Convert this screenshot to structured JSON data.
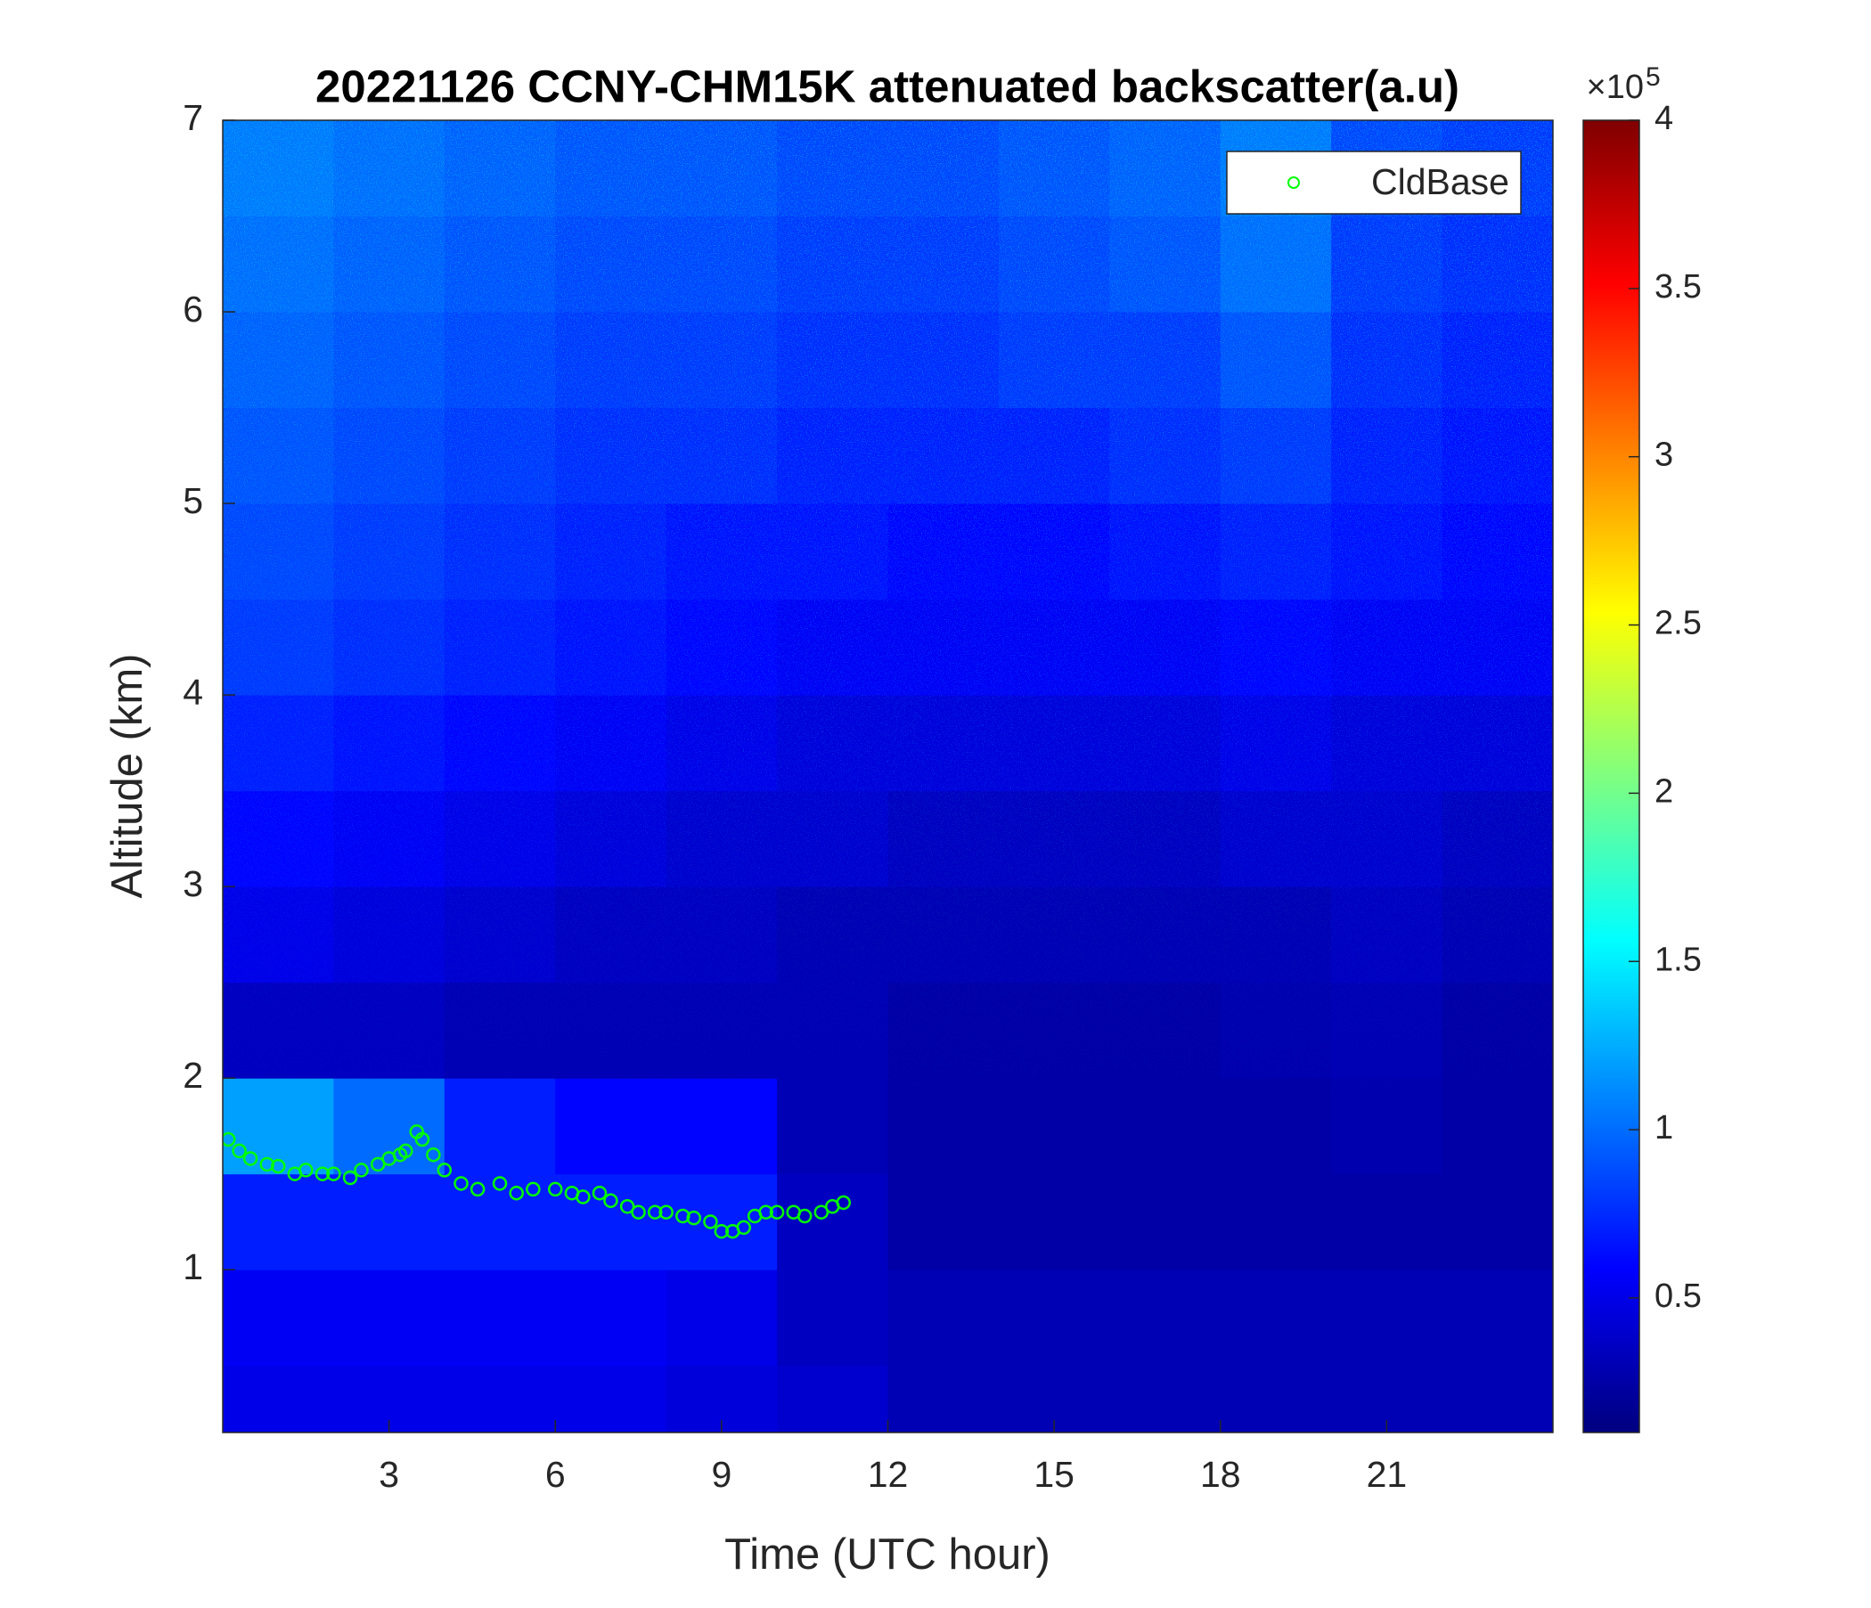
{
  "chart_data": {
    "type": "heatmap",
    "title": "20221126 CCNY-CHM15K attenuated backscatter(a.u)",
    "x_label": "Time (UTC hour)",
    "y_label": "Altitude (km)",
    "xlim": [
      0,
      24
    ],
    "xticks": [
      3,
      6,
      9,
      12,
      15,
      18,
      21
    ],
    "ylim": [
      0.15,
      7
    ],
    "yticks": [
      1,
      2,
      3,
      4,
      5,
      6,
      7
    ],
    "x_edges": [
      0,
      2,
      4,
      6,
      8,
      10,
      12,
      14,
      16,
      18,
      20,
      22,
      24
    ],
    "y_edges": [
      0.15,
      0.5,
      1,
      1.5,
      2,
      2.5,
      3,
      3.5,
      4,
      4.5,
      5,
      5.5,
      6,
      6.5,
      7
    ],
    "z": [
      [
        0.5,
        0.5,
        0.5,
        0.5,
        0.45,
        0.4,
        0.3,
        0.3,
        0.3,
        0.3,
        0.3,
        0.3
      ],
      [
        0.55,
        0.55,
        0.55,
        0.55,
        0.5,
        0.35,
        0.3,
        0.3,
        0.3,
        0.3,
        0.3,
        0.3
      ],
      [
        0.7,
        0.7,
        0.7,
        0.7,
        0.7,
        0.35,
        0.25,
        0.25,
        0.25,
        0.25,
        0.25,
        0.25
      ],
      [
        1.2,
        1.0,
        0.7,
        0.6,
        0.6,
        0.3,
        0.25,
        0.25,
        0.25,
        0.25,
        0.28,
        0.25
      ],
      [
        0.35,
        0.35,
        0.3,
        0.3,
        0.3,
        0.3,
        0.25,
        0.25,
        0.25,
        0.28,
        0.3,
        0.25
      ],
      [
        0.5,
        0.45,
        0.4,
        0.35,
        0.35,
        0.3,
        0.3,
        0.3,
        0.3,
        0.3,
        0.35,
        0.3
      ],
      [
        0.6,
        0.55,
        0.5,
        0.45,
        0.4,
        0.4,
        0.35,
        0.35,
        0.35,
        0.4,
        0.4,
        0.35
      ],
      [
        0.7,
        0.65,
        0.6,
        0.55,
        0.5,
        0.45,
        0.45,
        0.45,
        0.45,
        0.5,
        0.45,
        0.45
      ],
      [
        0.8,
        0.75,
        0.7,
        0.65,
        0.6,
        0.55,
        0.55,
        0.55,
        0.55,
        0.6,
        0.55,
        0.55
      ],
      [
        0.85,
        0.8,
        0.75,
        0.7,
        0.65,
        0.65,
        0.6,
        0.6,
        0.65,
        0.7,
        0.65,
        0.6
      ],
      [
        0.9,
        0.85,
        0.8,
        0.75,
        0.75,
        0.7,
        0.7,
        0.7,
        0.75,
        0.8,
        0.7,
        0.65
      ],
      [
        0.95,
        0.9,
        0.85,
        0.8,
        0.8,
        0.75,
        0.75,
        0.8,
        0.8,
        0.9,
        0.75,
        0.7
      ],
      [
        1.0,
        0.95,
        0.9,
        0.85,
        0.85,
        0.8,
        0.8,
        0.85,
        0.9,
        1.0,
        0.8,
        0.75
      ],
      [
        1.05,
        1.0,
        0.95,
        0.9,
        0.9,
        0.85,
        0.85,
        0.9,
        0.95,
        1.05,
        0.85,
        0.8
      ]
    ],
    "colormap": "jet",
    "clim": [
      0.1,
      4
    ],
    "colorbar_ticks": [
      0.5,
      1,
      1.5,
      2,
      2.5,
      3,
      3.5,
      4
    ],
    "colorbar_exponent_label": "×10",
    "colorbar_exponent": 5,
    "legend": "upper right",
    "overlay": {
      "type": "scatter",
      "name": "CldBase",
      "color": "#00ff00",
      "x": [
        0.1,
        0.3,
        0.5,
        0.8,
        1.0,
        1.3,
        1.5,
        1.8,
        2.0,
        2.3,
        2.5,
        2.8,
        3.0,
        3.2,
        3.3,
        3.5,
        3.6,
        3.8,
        4.0,
        4.3,
        4.6,
        5.0,
        5.3,
        5.6,
        6.0,
        6.3,
        6.5,
        6.8,
        7.0,
        7.3,
        7.5,
        7.8,
        8.0,
        8.3,
        8.5,
        8.8,
        9.0,
        9.2,
        9.4,
        9.6,
        9.8,
        10.0,
        10.3,
        10.5,
        10.8,
        11.0,
        11.2
      ],
      "y": [
        1.68,
        1.62,
        1.58,
        1.55,
        1.54,
        1.5,
        1.52,
        1.5,
        1.5,
        1.48,
        1.52,
        1.55,
        1.58,
        1.6,
        1.62,
        1.72,
        1.68,
        1.6,
        1.52,
        1.45,
        1.42,
        1.45,
        1.4,
        1.42,
        1.42,
        1.4,
        1.38,
        1.4,
        1.36,
        1.33,
        1.3,
        1.3,
        1.3,
        1.28,
        1.27,
        1.25,
        1.2,
        1.2,
        1.22,
        1.28,
        1.3,
        1.3,
        1.3,
        1.28,
        1.3,
        1.33,
        1.35
      ]
    }
  }
}
